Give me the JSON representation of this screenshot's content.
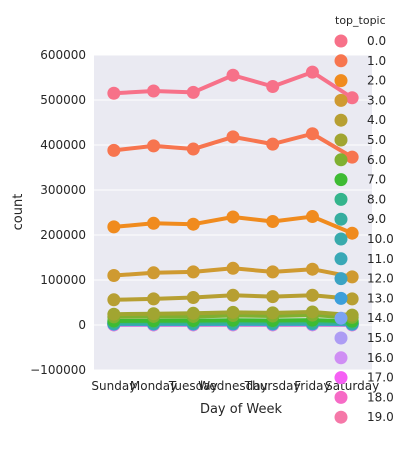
{
  "chart_data": {
    "type": "line",
    "xlabel": "Day of Week",
    "ylabel": "count",
    "categories": [
      "Sunday",
      "Monday",
      "Tuesday",
      "Wednesday",
      "Thursday",
      "Friday",
      "Saturday"
    ],
    "ylim": [
      -100000,
      600000
    ],
    "yticks": [
      -100000,
      0,
      100000,
      200000,
      300000,
      400000,
      500000,
      600000
    ],
    "ytick_labels": [
      "−100000",
      "0",
      "100000",
      "200000",
      "300000",
      "400000",
      "500000",
      "600000"
    ],
    "grid": true,
    "legend": {
      "title": "top_topic",
      "placement": "right, outside",
      "entries": [
        "0.0",
        "1.0",
        "2.0",
        "3.0",
        "4.0",
        "5.0",
        "6.0",
        "7.0",
        "8.0",
        "9.0",
        "10.0",
        "11.0",
        "12.0",
        "13.0",
        "14.0",
        "15.0",
        "16.0",
        "17.0",
        "18.0",
        "19.0"
      ]
    },
    "series": [
      {
        "name": "0.0",
        "color": "#f77189",
        "values": [
          515000,
          520000,
          517000,
          555000,
          530000,
          562000,
          505000
        ]
      },
      {
        "name": "1.0",
        "color": "#f7754f",
        "values": [
          388000,
          398000,
          391000,
          418000,
          402000,
          425000,
          373000
        ]
      },
      {
        "name": "2.0",
        "color": "#f08b1e",
        "values": [
          218000,
          226000,
          224000,
          240000,
          230000,
          241000,
          204000
        ]
      },
      {
        "name": "3.0",
        "color": "#cf9a31",
        "values": [
          110000,
          116000,
          118000,
          126000,
          118000,
          124000,
          107000
        ]
      },
      {
        "name": "4.0",
        "color": "#b79f32",
        "values": [
          56000,
          58000,
          61000,
          66000,
          63000,
          66000,
          58000
        ]
      },
      {
        "name": "5.0",
        "color": "#a1a531",
        "values": [
          24000,
          25000,
          26000,
          28000,
          27000,
          29000,
          22000
        ]
      },
      {
        "name": "6.0",
        "color": "#7fb031",
        "values": [
          18000,
          19000,
          19000,
          21000,
          20000,
          22000,
          17000
        ]
      },
      {
        "name": "7.0",
        "color": "#3ebb33",
        "values": [
          9000,
          9500,
          9800,
          10500,
          10000,
          10800,
          8500
        ]
      },
      {
        "name": "8.0",
        "color": "#34b48c",
        "values": [
          7000,
          7500,
          7600,
          8200,
          7800,
          8300,
          6500
        ]
      },
      {
        "name": "9.0",
        "color": "#36ad9f",
        "values": [
          5000,
          5200,
          5300,
          5800,
          5500,
          5900,
          4600
        ]
      },
      {
        "name": "10.0",
        "color": "#38aaac",
        "values": [
          4000,
          4200,
          4300,
          4600,
          4400,
          4700,
          3800
        ]
      },
      {
        "name": "11.0",
        "color": "#39a8b6",
        "values": [
          3200,
          3300,
          3400,
          3700,
          3500,
          3800,
          3000
        ]
      },
      {
        "name": "12.0",
        "color": "#3ba3c3",
        "values": [
          2600,
          2700,
          2800,
          3000,
          2900,
          3100,
          2400
        ]
      },
      {
        "name": "13.0",
        "color": "#3c9fdb",
        "values": [
          2200,
          2300,
          2300,
          2500,
          2400,
          2600,
          2000
        ]
      },
      {
        "name": "14.0",
        "color": "#7ba3f4",
        "values": [
          1800,
          1900,
          1900,
          2100,
          2000,
          2100,
          1700
        ]
      },
      {
        "name": "15.0",
        "color": "#ad9cf4",
        "values": [
          1500,
          1500,
          1600,
          1700,
          1600,
          1700,
          1400
        ]
      },
      {
        "name": "16.0",
        "color": "#cf8ef4",
        "values": [
          1200,
          1200,
          1300,
          1400,
          1300,
          1400,
          1100
        ]
      },
      {
        "name": "17.0",
        "color": "#f560f4",
        "values": [
          900,
          950,
          980,
          1050,
          1000,
          1080,
          850
        ]
      },
      {
        "name": "18.0",
        "color": "#f66bc6",
        "values": [
          600,
          620,
          640,
          700,
          660,
          720,
          560
        ]
      },
      {
        "name": "19.0",
        "color": "#f578a8",
        "values": [
          300,
          310,
          320,
          350,
          330,
          360,
          280
        ]
      }
    ]
  }
}
